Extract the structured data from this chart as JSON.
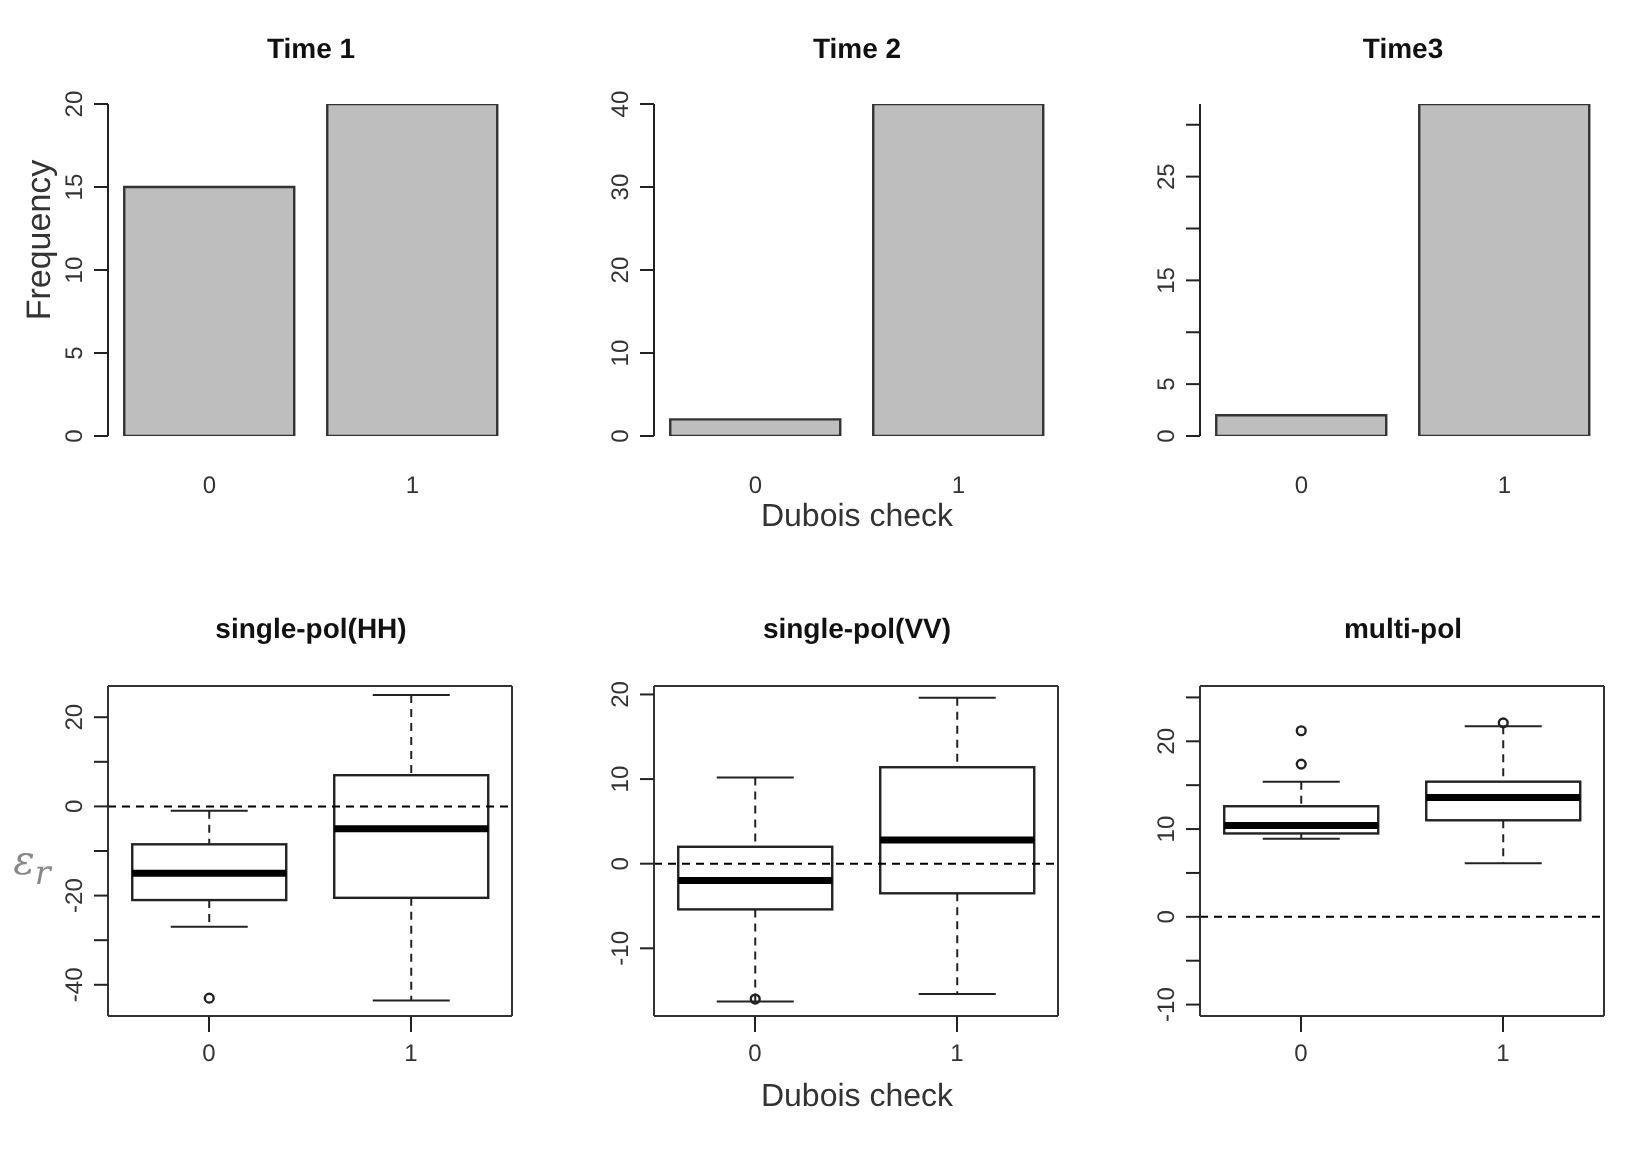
{
  "chart_data": [
    {
      "type": "bar",
      "title": "Time 1",
      "ylabel": "Frequency",
      "categories": [
        "0",
        "1"
      ],
      "values": [
        15,
        20
      ],
      "color": "#bebebe",
      "ylim": [
        0,
        20
      ],
      "yticks": [
        0,
        5,
        10,
        15,
        20
      ]
    },
    {
      "type": "bar",
      "title": "Time 2",
      "xlabel": "Dubois check",
      "categories": [
        "0",
        "1"
      ],
      "values": [
        2,
        40
      ],
      "color": "#bebebe",
      "ylim": [
        0,
        40
      ],
      "yticks": [
        0,
        10,
        20,
        30,
        40
      ]
    },
    {
      "type": "bar",
      "title": "Time3",
      "categories": [
        "0",
        "1"
      ],
      "values": [
        2,
        32
      ],
      "color": "#bebebe",
      "ylim": [
        0,
        32
      ],
      "yticks": [
        0,
        5,
        {
          "value": 10,
          "label": null
        },
        15,
        {
          "value": 20,
          "label": null
        },
        25,
        {
          "value": 30,
          "label": null
        }
      ]
    },
    {
      "type": "box",
      "title": "single-pol(HH)",
      "ylabel": "ε$_{r}$",
      "categories": [
        "0",
        "1"
      ],
      "ylim": [
        -47,
        27
      ],
      "yticks": [
        {
          "value": -40,
          "label": "-40"
        },
        {
          "value": -30,
          "label": null
        },
        {
          "value": -20,
          "label": "-20"
        },
        {
          "value": -10,
          "label": null
        },
        0,
        {
          "value": 10,
          "label": null
        },
        20
      ],
      "boxes": [
        {
          "low": -27,
          "q1": -21,
          "median": -15,
          "q3": -8.5,
          "high": -1,
          "outliers": [
            -43
          ]
        },
        {
          "low": -43.5,
          "q1": -20.5,
          "median": -5,
          "q3": 7,
          "high": 25
        }
      ],
      "ref_lines": [
        {
          "axis": "y",
          "value": 0,
          "line_style": "dashed"
        }
      ]
    },
    {
      "type": "box",
      "title": "single-pol(VV)",
      "xlabel": "Dubois check",
      "categories": [
        "0",
        "1"
      ],
      "ylim": [
        -18,
        21
      ],
      "yticks": [
        {
          "value": -10,
          "label": "-10"
        },
        0,
        10,
        20
      ],
      "boxes": [
        {
          "low": -16.3,
          "q1": -5.4,
          "median": -2,
          "q3": 2,
          "high": 10.2,
          "outliers": [
            -16
          ]
        },
        {
          "low": -15.4,
          "q1": -3.5,
          "median": 2.8,
          "q3": 11.4,
          "high": 19.6
        }
      ],
      "ref_lines": [
        {
          "axis": "y",
          "value": 0,
          "line_style": "dashed"
        }
      ]
    },
    {
      "type": "box",
      "title": "multi-pol",
      "categories": [
        "0",
        "1"
      ],
      "ylim": [
        -11.3,
        26.3
      ],
      "yticks": [
        {
          "value": -10,
          "label": "-10"
        },
        {
          "value": -5,
          "label": null
        },
        0,
        {
          "value": 5,
          "label": null
        },
        10,
        {
          "value": 15,
          "label": null
        },
        20,
        {
          "value": 25,
          "label": null
        }
      ],
      "boxes": [
        {
          "low": 8.9,
          "q1": 9.5,
          "median": 10.4,
          "q3": 12.6,
          "high": 15.4,
          "outliers": [
            17.4,
            21.2
          ]
        },
        {
          "low": 6.1,
          "q1": 11,
          "median": 13.6,
          "q3": 15.4,
          "high": 21.7,
          "outliers": [
            22.1
          ]
        }
      ],
      "ref_lines": [
        {
          "axis": "y",
          "value": 0,
          "line_style": "dashed"
        }
      ]
    }
  ]
}
